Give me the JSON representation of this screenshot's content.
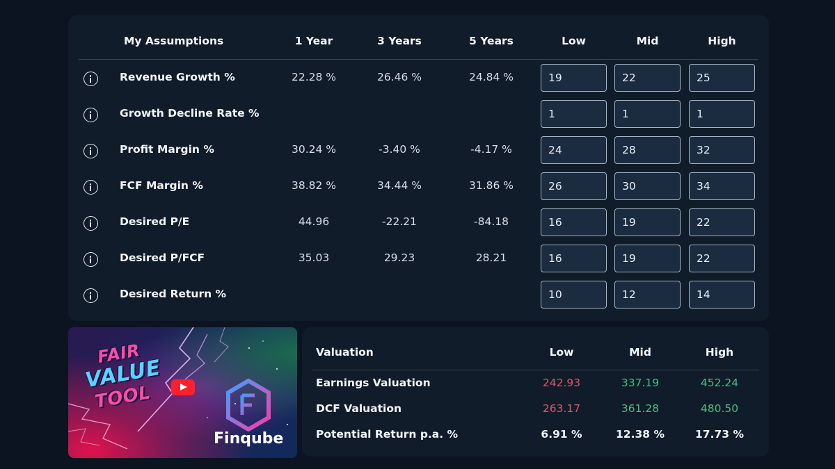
{
  "assumptions": {
    "headers": {
      "title": "My Assumptions",
      "y1": "1 Year",
      "y3": "3 Years",
      "y5": "5 Years",
      "low": "Low",
      "mid": "Mid",
      "high": "High"
    },
    "rows": [
      {
        "label": "Revenue Growth %",
        "y1": "22.28 %",
        "y3": "26.46 %",
        "y5": "24.84 %",
        "low": "19",
        "mid": "22",
        "high": "25"
      },
      {
        "label": "Growth Decline Rate %",
        "y1": "",
        "y3": "",
        "y5": "",
        "low": "1",
        "mid": "1",
        "high": "1"
      },
      {
        "label": "Profit Margin %",
        "y1": "30.24 %",
        "y3": "-3.40 %",
        "y5": "-4.17 %",
        "low": "24",
        "mid": "28",
        "high": "32"
      },
      {
        "label": "FCF Margin %",
        "y1": "38.82 %",
        "y3": "34.44 %",
        "y5": "31.86 %",
        "low": "26",
        "mid": "30",
        "high": "34"
      },
      {
        "label": "Desired P/E",
        "y1": "44.96",
        "y3": "-22.21",
        "y5": "-84.18",
        "low": "16",
        "mid": "19",
        "high": "22"
      },
      {
        "label": "Desired P/FCF",
        "y1": "35.03",
        "y3": "29.23",
        "y5": "28.21",
        "low": "16",
        "mid": "19",
        "high": "22"
      },
      {
        "label": "Desired Return %",
        "y1": "",
        "y3": "",
        "y5": "",
        "low": "10",
        "mid": "12",
        "high": "14"
      }
    ]
  },
  "valuation": {
    "headers": {
      "title": "Valuation",
      "low": "Low",
      "mid": "Mid",
      "high": "High"
    },
    "rows": [
      {
        "label": "Earnings Valuation",
        "low": "242.93",
        "mid": "337.19",
        "high": "452.24"
      },
      {
        "label": "DCF Valuation",
        "low": "263.17",
        "mid": "361.28",
        "high": "480.50"
      },
      {
        "label": "Potential Return p.a. %",
        "low": "6.91 %",
        "mid": "12.38 %",
        "high": "17.73 %"
      }
    ]
  },
  "promo": {
    "line1": "FAIR",
    "line2": "VALUE",
    "line3": "TOOL",
    "brand": "Finqube"
  },
  "colors": {
    "background": "#0b1420",
    "panel": "#111c2a",
    "negative": "#e0566a",
    "positive": "#4cbb83"
  }
}
